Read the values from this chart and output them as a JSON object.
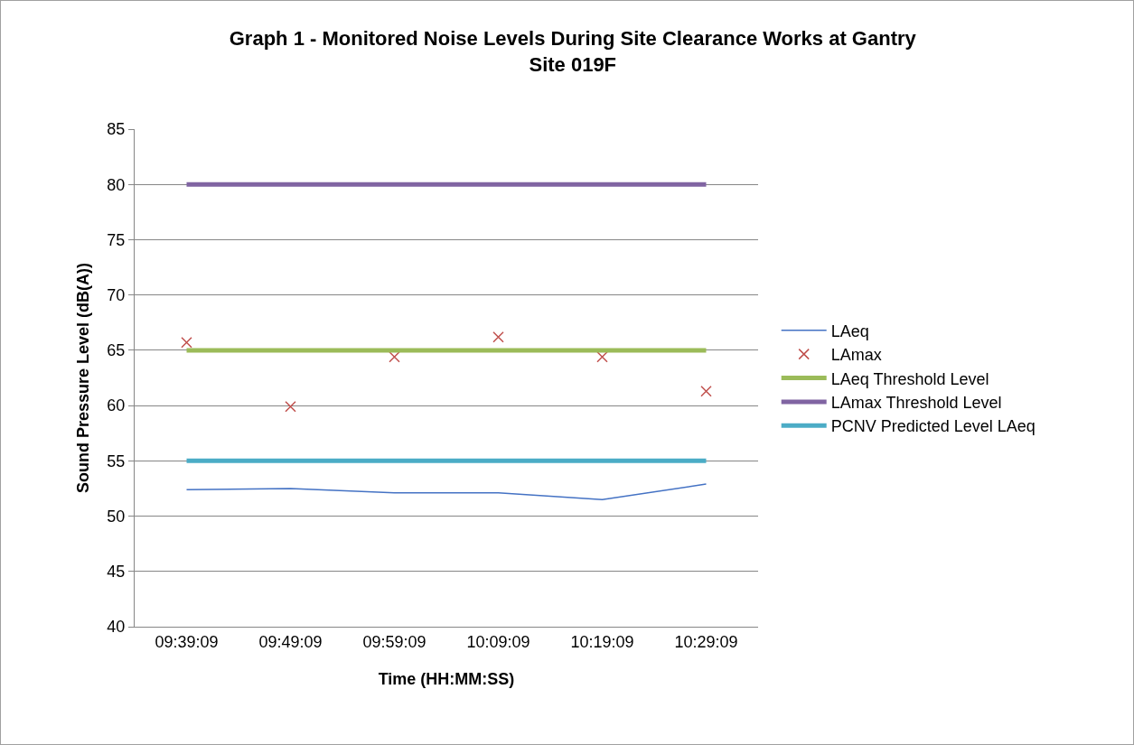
{
  "chart_data": {
    "type": "line",
    "title": "Graph 1 - Monitored Noise Levels During Site Clearance Works at Gantry Site 019F",
    "xlabel": "Time (HH:MM:SS)",
    "ylabel": "Sound Pressure Level (dB(A))",
    "categories": [
      "09:39:09",
      "09:49:09",
      "09:59:09",
      "10:09:09",
      "10:19:09",
      "10:29:09"
    ],
    "series": [
      {
        "name": "LAeq",
        "color": "#4472c4",
        "marker": "none",
        "values": [
          52.4,
          52.5,
          52.1,
          52.1,
          51.5,
          52.9
        ]
      },
      {
        "name": "LAmax",
        "type": "scatter",
        "color": "#c0504d",
        "marker": "cross",
        "values": [
          65.7,
          59.9,
          64.4,
          66.2,
          64.4,
          61.3
        ]
      },
      {
        "name": "LAeq Threshold Level",
        "color": "#9bbb59",
        "marker": "none",
        "values": [
          65,
          65,
          65,
          65,
          65,
          65
        ]
      },
      {
        "name": "LAmax Threshold Level",
        "color": "#8064a2",
        "marker": "none",
        "values": [
          80,
          80,
          80,
          80,
          80,
          80
        ]
      },
      {
        "name": "PCNV Predicted Level LAeq",
        "color": "#4bacc6",
        "marker": "none",
        "values": [
          55,
          55,
          55,
          55,
          55,
          55
        ]
      }
    ],
    "ylim": [
      40,
      85
    ],
    "yticks": [
      40,
      45,
      50,
      55,
      60,
      65,
      70,
      75,
      80,
      85
    ],
    "grid": "y",
    "legend": "right"
  }
}
